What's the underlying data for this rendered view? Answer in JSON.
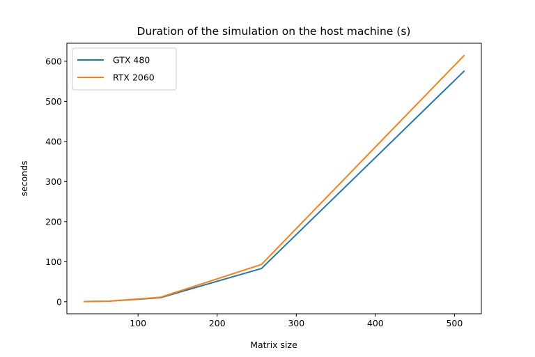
{
  "chart_data": {
    "type": "line",
    "title": "Duration of the simulation on the host machine (s)",
    "xlabel": "Matrix size",
    "ylabel": "seconds",
    "xlim": [
      10,
      534
    ],
    "ylim": [
      -30,
      645
    ],
    "xticks": [
      100,
      200,
      300,
      400,
      500
    ],
    "yticks": [
      0,
      100,
      200,
      300,
      400,
      500,
      600
    ],
    "grid": false,
    "legend_position": "top-left",
    "series": [
      {
        "name": "GTX 480",
        "color": "#1f77b4",
        "x": [
          32,
          64,
          128,
          256,
          512
        ],
        "y": [
          0.5,
          1.5,
          10,
          83,
          575
        ]
      },
      {
        "name": "RTX 2060",
        "color": "#ff7f0e",
        "x": [
          32,
          64,
          128,
          256,
          512
        ],
        "y": [
          0.5,
          1.5,
          11,
          93,
          614
        ]
      }
    ]
  }
}
